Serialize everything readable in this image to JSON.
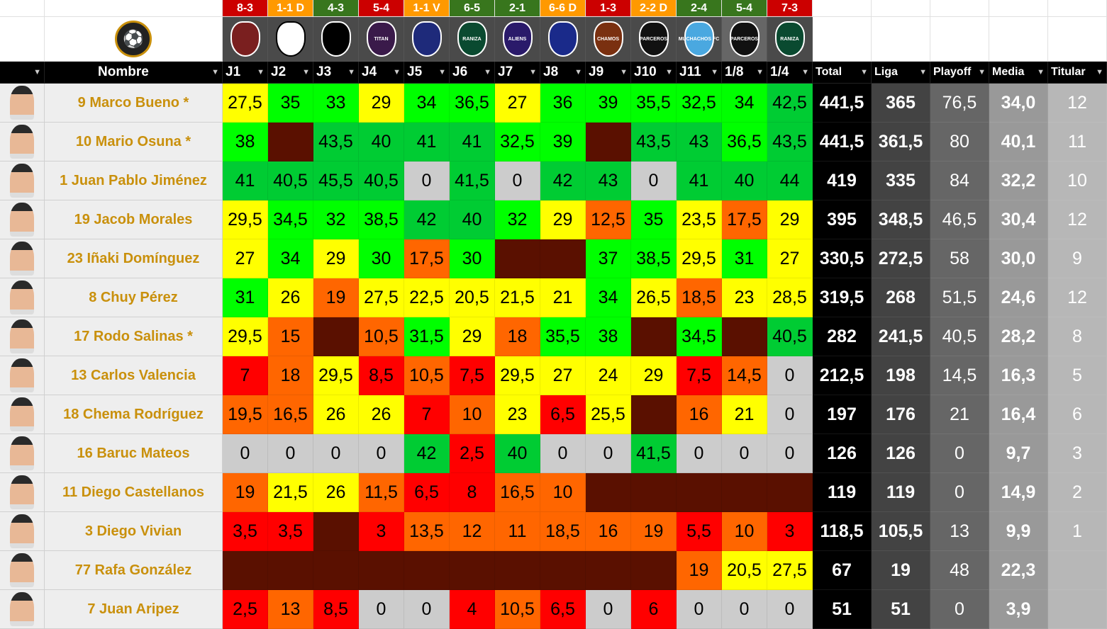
{
  "colors": {
    "dark_green": "#00cc33",
    "green": "#00ff00",
    "yellow": "#ffff00",
    "orange": "#ff6600",
    "red": "#ff0000",
    "no_play": "#5a1000",
    "zero": "#cccccc",
    "win": "#38761d",
    "draw": "#ff9900",
    "loss": "#cc0000"
  },
  "club_logo": "soccer-ball-badge-icon",
  "matches": [
    {
      "result": "8-3",
      "outcome": "loss",
      "logo": "horned-mask-badge-icon",
      "logo_text": ""
    },
    {
      "result": "1-1 D",
      "outcome": "draw",
      "logo": "cat-badge-icon",
      "logo_text": ""
    },
    {
      "result": "4-3",
      "outcome": "win",
      "logo": "black-white-shield-icon",
      "logo_text": ""
    },
    {
      "result": "5-4",
      "outcome": "loss",
      "logo": "titan-badge-icon",
      "logo_text": "TITAN"
    },
    {
      "result": "1-1 V",
      "outcome": "draw",
      "logo": "blue-circle-badge-icon",
      "logo_text": ""
    },
    {
      "result": "6-5",
      "outcome": "win",
      "logo": "raniza-frog-badge-icon",
      "logo_text": "RANIZA"
    },
    {
      "result": "2-1",
      "outcome": "win",
      "logo": "aliens-badge-icon",
      "logo_text": "ALIENS"
    },
    {
      "result": "6-6 D",
      "outcome": "draw",
      "logo": "red-blue-shield-icon",
      "logo_text": ""
    },
    {
      "result": "1-3",
      "outcome": "loss",
      "logo": "chamos-badge-icon",
      "logo_text": "CHAMOS"
    },
    {
      "result": "2-2 D",
      "outcome": "draw",
      "logo": "parceros-wolf-badge-icon",
      "logo_text": "PARCEROS"
    },
    {
      "result": "2-4",
      "outcome": "win",
      "logo": "muchachos-badge-icon",
      "logo_text": "MUCHACHOS FC"
    },
    {
      "result": "5-4",
      "outcome": "win",
      "logo": "parceros-wolf-badge-icon",
      "logo_text": "PARCEROS"
    },
    {
      "result": "7-3",
      "outcome": "loss",
      "logo": "raniza-frog-badge-icon",
      "logo_text": "RANIZA"
    }
  ],
  "headers": {
    "name": "Nombre",
    "rounds": [
      "J1",
      "J2",
      "J3",
      "J4",
      "J5",
      "J6",
      "J7",
      "J8",
      "J9",
      "J10",
      "J11",
      "1/8",
      "1/4"
    ],
    "stats": [
      "Total",
      "Liga",
      "Playoff",
      "Media",
      "Titular"
    ]
  },
  "stat_colors": [
    "#000000",
    "#434343",
    "#666666",
    "#999999",
    "#b7b7b7"
  ],
  "players": [
    {
      "name": "9 Marco Bueno *",
      "scores": [
        "27,5",
        "35",
        "33",
        "29",
        "34",
        "36,5",
        "27",
        "36",
        "39",
        "35,5",
        "32,5",
        "34",
        "42,5"
      ],
      "stats": [
        "441,5",
        "365",
        "76,5",
        "34,0",
        "12"
      ]
    },
    {
      "name": "10 Mario Osuna *",
      "scores": [
        "38",
        null,
        "43,5",
        "40",
        "41",
        "41",
        "32,5",
        "39",
        null,
        "43,5",
        "43",
        "36,5",
        "43,5"
      ],
      "stats": [
        "441,5",
        "361,5",
        "80",
        "40,1",
        "11"
      ]
    },
    {
      "name": "1 Juan Pablo Jiménez",
      "scores": [
        "41",
        "40,5",
        "45,5",
        "40,5",
        "0",
        "41,5",
        "0",
        "42",
        "43",
        "0",
        "41",
        "40",
        "44"
      ],
      "stats": [
        "419",
        "335",
        "84",
        "32,2",
        "10"
      ]
    },
    {
      "name": "19 Jacob Morales",
      "scores": [
        "29,5",
        "34,5",
        "32",
        "38,5",
        "42",
        "40",
        "32",
        "29",
        "12,5",
        "35",
        "23,5",
        "17,5",
        "29"
      ],
      "stats": [
        "395",
        "348,5",
        "46,5",
        "30,4",
        "12"
      ]
    },
    {
      "name": "23 Iñaki Domínguez",
      "scores": [
        "27",
        "34",
        "29",
        "30",
        "17,5",
        "30",
        null,
        null,
        "37",
        "38,5",
        "29,5",
        "31",
        "27"
      ],
      "stats": [
        "330,5",
        "272,5",
        "58",
        "30,0",
        "9"
      ]
    },
    {
      "name": "8 Chuy Pérez",
      "scores": [
        "31",
        "26",
        "19",
        "27,5",
        "22,5",
        "20,5",
        "21,5",
        "21",
        "34",
        "26,5",
        "18,5",
        "23",
        "28,5"
      ],
      "stats": [
        "319,5",
        "268",
        "51,5",
        "24,6",
        "12"
      ]
    },
    {
      "name": "17 Rodo Salinas *",
      "scores": [
        "29,5",
        "15",
        null,
        "10,5",
        "31,5",
        "29",
        "18",
        "35,5",
        "38",
        null,
        "34,5",
        null,
        "40,5"
      ],
      "stats": [
        "282",
        "241,5",
        "40,5",
        "28,2",
        "8"
      ]
    },
    {
      "name": "13 Carlos Valencia",
      "scores": [
        "7",
        "18",
        "29,5",
        "8,5",
        "10,5",
        "7,5",
        "29,5",
        "27",
        "24",
        "29",
        "7,5",
        "14,5",
        "0"
      ],
      "stats": [
        "212,5",
        "198",
        "14,5",
        "16,3",
        "5"
      ]
    },
    {
      "name": "18 Chema Rodríguez",
      "scores": [
        "19,5",
        "16,5",
        "26",
        "26",
        "7",
        "10",
        "23",
        "6,5",
        "25,5",
        null,
        "16",
        "21",
        "0"
      ],
      "stats": [
        "197",
        "176",
        "21",
        "16,4",
        "6"
      ]
    },
    {
      "name": "16 Baruc Mateos",
      "scores": [
        "0",
        "0",
        "0",
        "0",
        "42",
        "2,5",
        "40",
        "0",
        "0",
        "41,5",
        "0",
        "0",
        "0"
      ],
      "stats": [
        "126",
        "126",
        "0",
        "9,7",
        "3"
      ]
    },
    {
      "name": "11 Diego Castellanos",
      "scores": [
        "19",
        "21,5",
        "26",
        "11,5",
        "6,5",
        "8",
        "16,5",
        "10",
        null,
        null,
        null,
        null,
        null
      ],
      "stats": [
        "119",
        "119",
        "0",
        "14,9",
        "2"
      ]
    },
    {
      "name": "3 Diego Vivian",
      "scores": [
        "3,5",
        "3,5",
        null,
        "3",
        "13,5",
        "12",
        "11",
        "18,5",
        "16",
        "19",
        "5,5",
        "10",
        "3"
      ],
      "stats": [
        "118,5",
        "105,5",
        "13",
        "9,9",
        "1"
      ]
    },
    {
      "name": "77 Rafa González",
      "scores": [
        null,
        null,
        null,
        null,
        null,
        null,
        null,
        null,
        null,
        null,
        "19",
        "20,5",
        "27,5"
      ],
      "stats": [
        "67",
        "19",
        "48",
        "22,3",
        ""
      ]
    },
    {
      "name": "7 Juan Aripez",
      "scores": [
        "2,5",
        "13",
        "8,5",
        "0",
        "0",
        "4",
        "10,5",
        "6,5",
        "0",
        "6",
        "0",
        "0",
        "0"
      ],
      "stats": [
        "51",
        "51",
        "0",
        "3,9",
        ""
      ]
    }
  ]
}
